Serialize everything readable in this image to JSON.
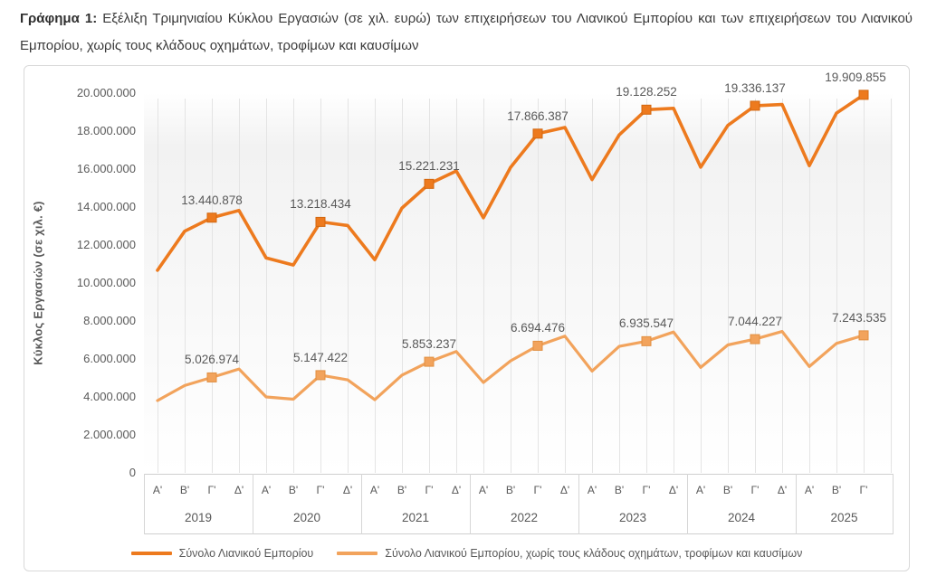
{
  "title": {
    "prefix": "Γράφημα 1:",
    "text": " Εξέλιξη Τριμηνιαίου Κύκλου Εργασιών (σε χιλ. ευρώ) των επιχειρήσεων του Λιανικού Εμπορίου και των επιχειρήσεων του Λιανικού Εμπορίου, χωρίς τους κλάδους οχημάτων, τροφίμων και καυσίμων"
  },
  "chart_data": {
    "type": "line",
    "ylabel": "Κύκλος Εργασιών (σε χιλ. €)",
    "ylim": [
      0,
      20000000
    ],
    "grid": "vertical",
    "y_ticks": [
      "0",
      "2.000.000",
      "4.000.000",
      "6.000.000",
      "8.000.000",
      "10.000.000",
      "12.000.000",
      "14.000.000",
      "16.000.000",
      "18.000.000",
      "20.000.000"
    ],
    "years": [
      {
        "label": "2019",
        "quarters": [
          "Α'",
          "Β'",
          "Γ'",
          "Δ'"
        ]
      },
      {
        "label": "2020",
        "quarters": [
          "Α'",
          "Β'",
          "Γ'",
          "Δ'"
        ]
      },
      {
        "label": "2021",
        "quarters": [
          "Α'",
          "Β'",
          "Γ'",
          "Δ'"
        ]
      },
      {
        "label": "2022",
        "quarters": [
          "Α'",
          "Β'",
          "Γ'",
          "Δ'"
        ]
      },
      {
        "label": "2023",
        "quarters": [
          "Α'",
          "Β'",
          "Γ'",
          "Δ'"
        ]
      },
      {
        "label": "2024",
        "quarters": [
          "Α'",
          "Β'",
          "Γ'",
          "Δ'"
        ]
      },
      {
        "label": "2025",
        "quarters": [
          "Α'",
          "Β'",
          "Γ'"
        ]
      }
    ],
    "series": [
      {
        "name": "Σύνολο Λιανικού Εμπορίου",
        "color": "#ED7A1E",
        "marker_border": "#D2670F",
        "line_width": 3.6,
        "marker_indices": [
          2,
          6,
          10,
          14,
          18,
          22,
          26
        ],
        "values": [
          10670000,
          12730000,
          13440878,
          13820000,
          11320000,
          10950000,
          13218434,
          13030000,
          11230000,
          13950000,
          15221231,
          15900000,
          13440000,
          16090000,
          17866387,
          18190000,
          15450000,
          17800000,
          19128252,
          19200000,
          16100000,
          18300000,
          19336137,
          19400000,
          16180000,
          18950000,
          19909855
        ]
      },
      {
        "name": "Σύνολο Λιανικού Εμπορίου, χωρίς τους κλάδους οχημάτων, τροφίμων και καυσίμων",
        "color": "#F2A35C",
        "marker_border": "#E18F41",
        "line_width": 3.2,
        "marker_indices": [
          2,
          6,
          10,
          14,
          18,
          22,
          26
        ],
        "values": [
          3810000,
          4600000,
          5026974,
          5470000,
          4000000,
          3880000,
          5147422,
          4900000,
          3850000,
          5150000,
          5853237,
          6390000,
          4760000,
          5900000,
          6694476,
          7200000,
          5360000,
          6660000,
          6935547,
          7420000,
          5550000,
          6740000,
          7044227,
          7450000,
          5600000,
          6820000,
          7243535
        ]
      }
    ],
    "data_labels": [
      {
        "series": 0,
        "index": 2,
        "text": "13.440.878"
      },
      {
        "series": 0,
        "index": 6,
        "text": "13.218.434"
      },
      {
        "series": 0,
        "index": 10,
        "text": "15.221.231"
      },
      {
        "series": 0,
        "index": 14,
        "text": "17.866.387"
      },
      {
        "series": 0,
        "index": 18,
        "text": "19.128.252"
      },
      {
        "series": 0,
        "index": 22,
        "text": "19.336.137"
      },
      {
        "series": 0,
        "index": 26,
        "text": "19.909.855",
        "dx": -9
      },
      {
        "series": 1,
        "index": 2,
        "text": "5.026.974"
      },
      {
        "series": 1,
        "index": 6,
        "text": "5.147.422"
      },
      {
        "series": 1,
        "index": 10,
        "text": "5.853.237"
      },
      {
        "series": 1,
        "index": 14,
        "text": "6.694.476"
      },
      {
        "series": 1,
        "index": 18,
        "text": "6.935.547"
      },
      {
        "series": 1,
        "index": 22,
        "text": "7.044.227"
      },
      {
        "series": 1,
        "index": 26,
        "text": "7.243.535",
        "dx": -5
      }
    ]
  },
  "legend": {
    "items": [
      {
        "label": "Σύνολο Λιανικού Εμπορίου",
        "color": "#ED7A1E"
      },
      {
        "label": "Σύνολο Λιανικού Εμπορίου, χωρίς τους κλάδους οχημάτων, τροφίμων και καυσίμων",
        "color": "#F2A35C"
      }
    ]
  },
  "colors": {
    "series_total": "#ED7A1E",
    "series_excl": "#F2A35C",
    "axis_text": "#595959",
    "gridline": "#e4e4e4",
    "frame_border": "#d9d9d9"
  }
}
